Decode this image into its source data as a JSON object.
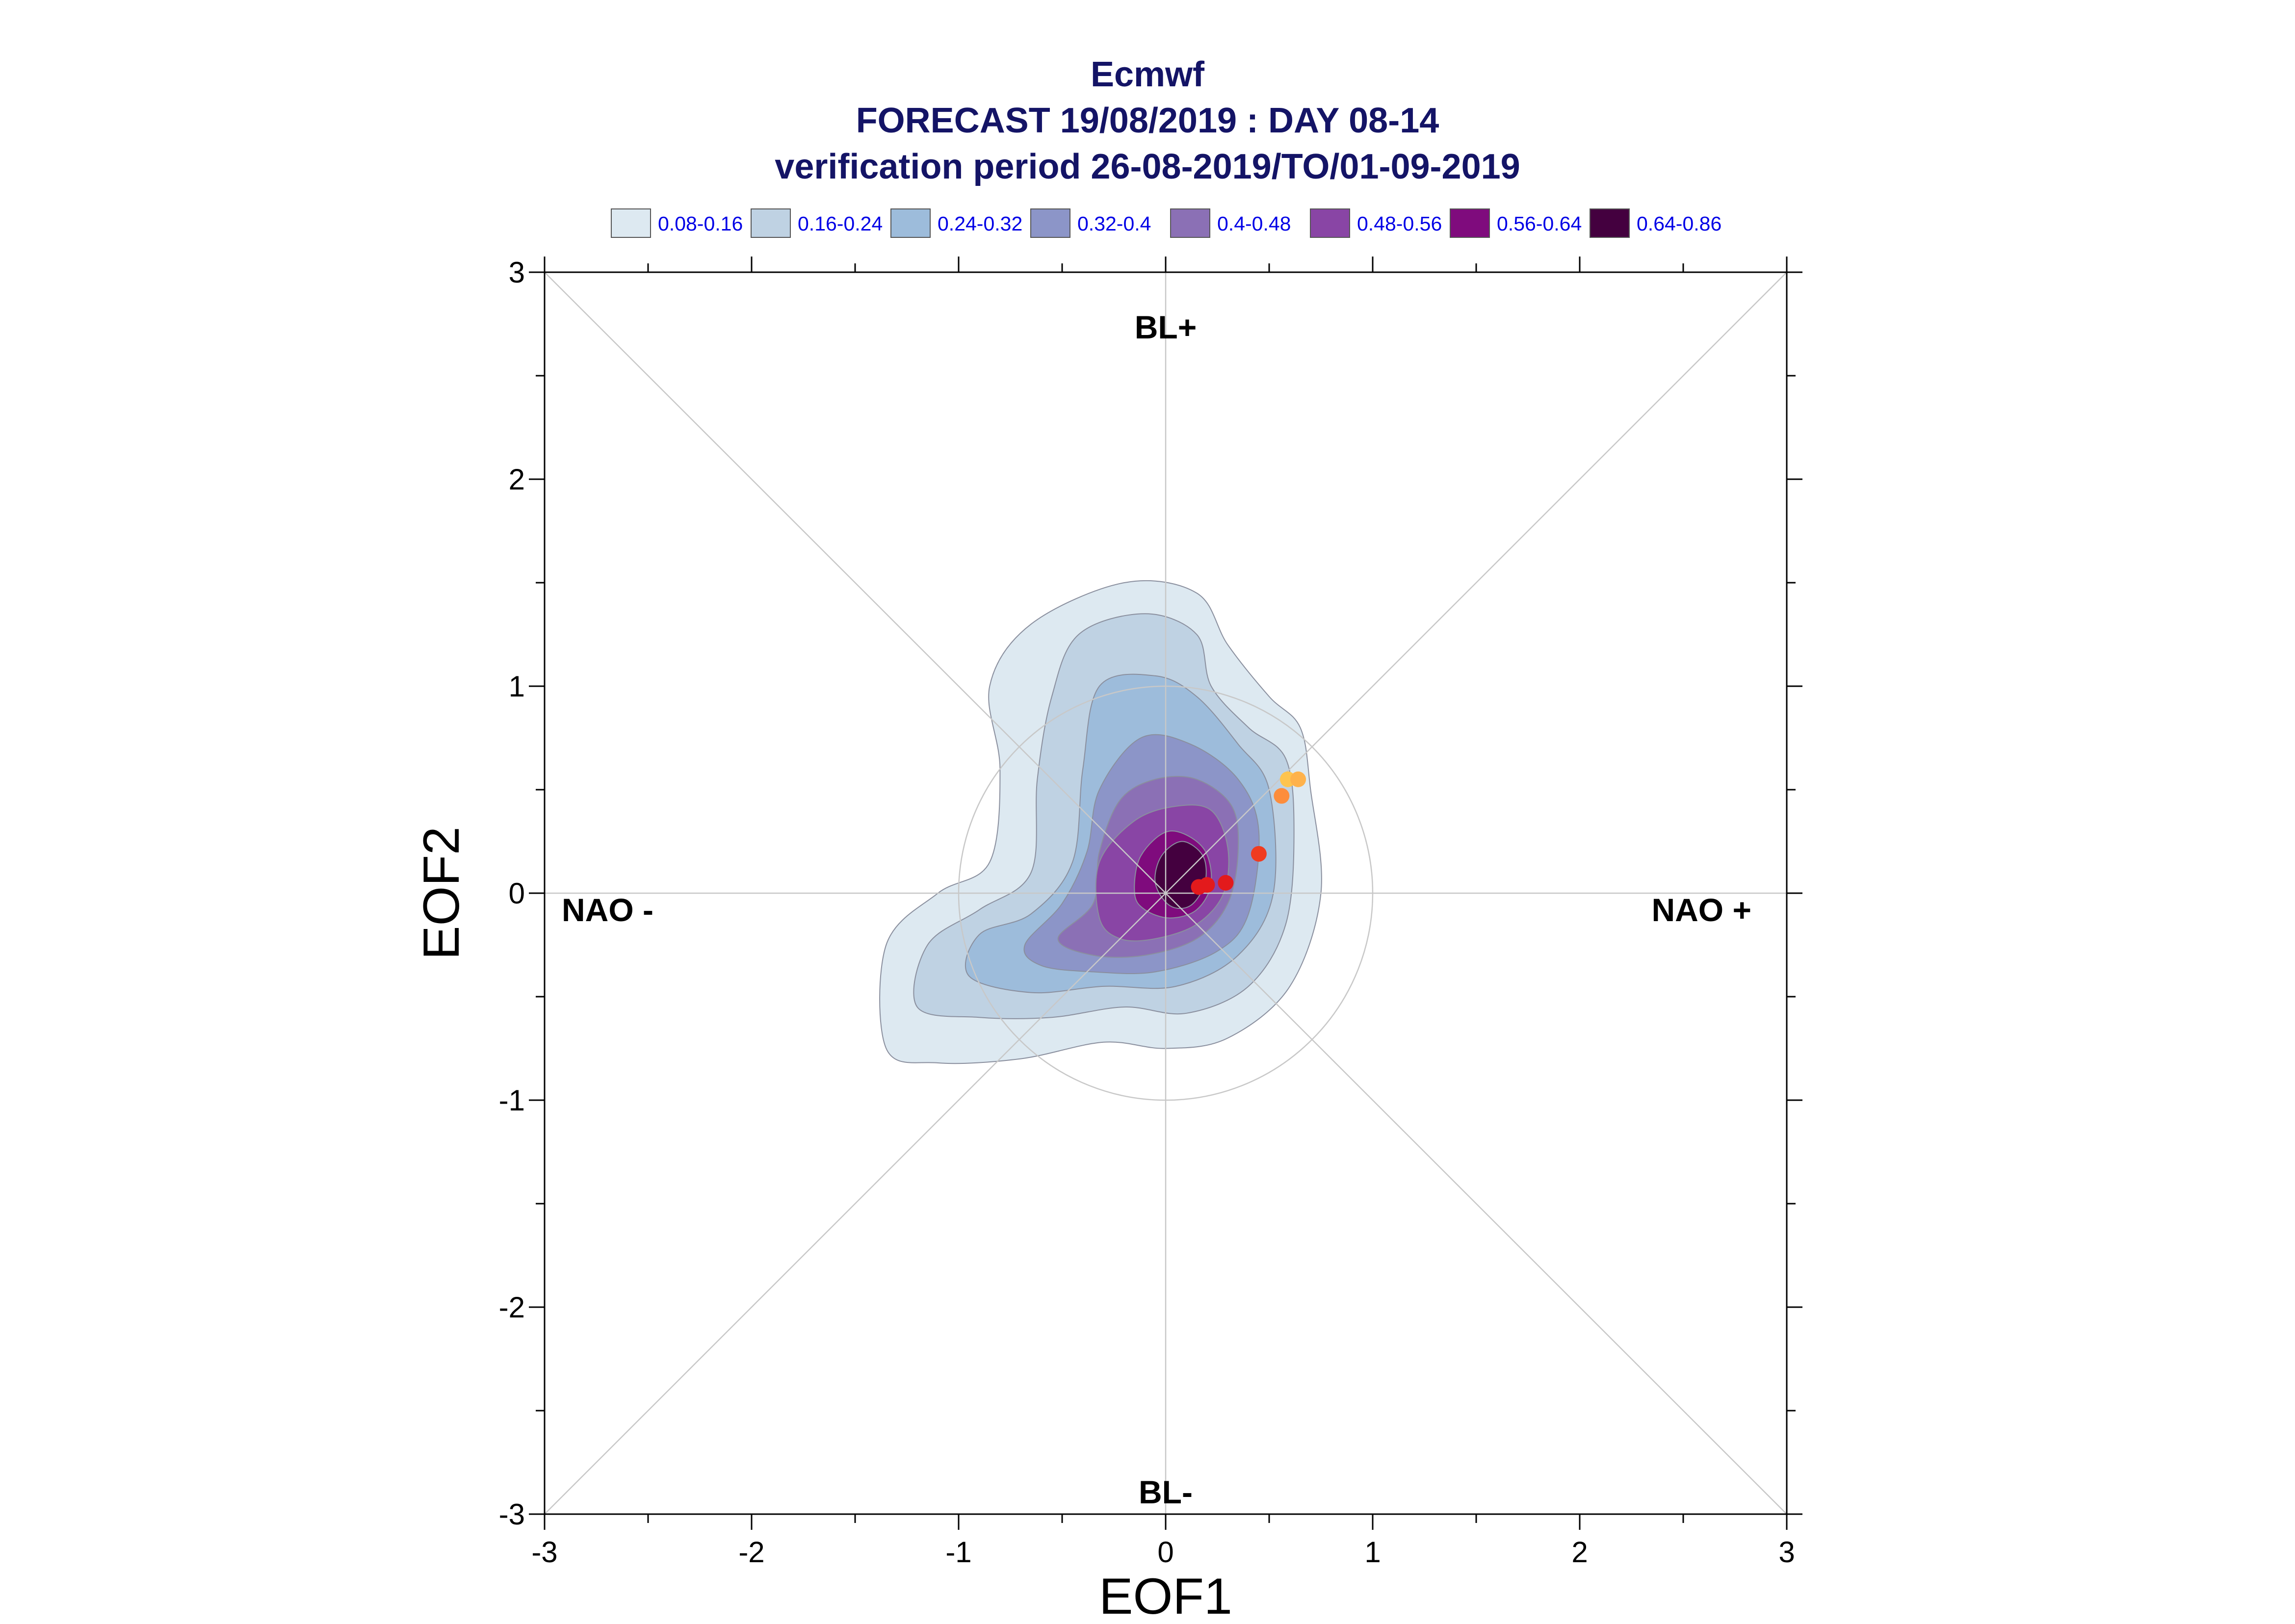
{
  "title": {
    "line1": "Ecmwf",
    "line2": "FORECAST 19/08/2019 : DAY 08-14",
    "line3": "verification period 26-08-2019/TO/01-09-2019"
  },
  "legend": [
    {
      "label": "0.08-0.16",
      "color": "#dde9f1"
    },
    {
      "label": "0.16-0.24",
      "color": "#bfd2e3"
    },
    {
      "label": "0.24-0.32",
      "color": "#9dbcdb"
    },
    {
      "label": "0.32-0.4",
      "color": "#8c95c8"
    },
    {
      "label": "0.4-0.48",
      "color": "#8b70b5"
    },
    {
      "label": "0.48-0.56",
      "color": "#8945a5"
    },
    {
      "label": "0.56-0.64",
      "color": "#7f0b7d"
    },
    {
      "label": "0.64-0.86",
      "color": "#44003f"
    }
  ],
  "regime_labels": {
    "top": "BL+",
    "bottom": "BL-",
    "left": "NAO -",
    "right": "NAO +"
  },
  "chart_data": {
    "type": "scatter",
    "xlabel": "EOF1",
    "ylabel": "EOF2",
    "xlim": [
      -3,
      3
    ],
    "ylim": [
      -3,
      3
    ],
    "xticks": [
      "-3",
      "-2",
      "-1",
      "0",
      "1",
      "2",
      "3"
    ],
    "yticks": [
      "-3",
      "-2",
      "-1",
      "0",
      "1",
      "2",
      "3"
    ],
    "grid": false,
    "reference_circle_radius": 1,
    "density_contours": [
      {
        "level": "0.08-0.16",
        "color": "#dde9f1",
        "points": [
          [
            -1.35,
            -0.75
          ],
          [
            -1.35,
            -0.25
          ],
          [
            -1.1,
            0.0
          ],
          [
            -0.85,
            0.15
          ],
          [
            -0.8,
            0.6
          ],
          [
            -0.85,
            1.0
          ],
          [
            -0.65,
            1.3
          ],
          [
            -0.2,
            1.5
          ],
          [
            0.15,
            1.45
          ],
          [
            0.3,
            1.2
          ],
          [
            0.5,
            0.95
          ],
          [
            0.65,
            0.8
          ],
          [
            0.7,
            0.5
          ],
          [
            0.75,
            0.0
          ],
          [
            0.6,
            -0.45
          ],
          [
            0.3,
            -0.7
          ],
          [
            0.0,
            -0.75
          ],
          [
            -0.3,
            -0.72
          ],
          [
            -0.7,
            -0.8
          ],
          [
            -1.1,
            -0.82
          ]
        ]
      },
      {
        "level": "0.16-0.24",
        "color": "#bfd2e3",
        "points": [
          [
            -1.2,
            -0.55
          ],
          [
            -1.15,
            -0.25
          ],
          [
            -0.9,
            -0.08
          ],
          [
            -0.65,
            0.1
          ],
          [
            -0.62,
            0.55
          ],
          [
            -0.55,
            0.95
          ],
          [
            -0.42,
            1.25
          ],
          [
            -0.1,
            1.35
          ],
          [
            0.15,
            1.25
          ],
          [
            0.22,
            1.0
          ],
          [
            0.4,
            0.8
          ],
          [
            0.58,
            0.65
          ],
          [
            0.62,
            0.3
          ],
          [
            0.58,
            -0.15
          ],
          [
            0.4,
            -0.45
          ],
          [
            0.1,
            -0.58
          ],
          [
            -0.2,
            -0.55
          ],
          [
            -0.55,
            -0.6
          ],
          [
            -0.9,
            -0.6
          ]
        ]
      },
      {
        "level": "0.24-0.32",
        "color": "#9dbcdb",
        "points": [
          [
            -0.95,
            -0.4
          ],
          [
            -0.9,
            -0.2
          ],
          [
            -0.65,
            -0.1
          ],
          [
            -0.45,
            0.15
          ],
          [
            -0.4,
            0.6
          ],
          [
            -0.32,
            1.0
          ],
          [
            -0.05,
            1.05
          ],
          [
            0.15,
            0.95
          ],
          [
            0.35,
            0.72
          ],
          [
            0.5,
            0.5
          ],
          [
            0.52,
            0.0
          ],
          [
            0.35,
            -0.3
          ],
          [
            0.05,
            -0.45
          ],
          [
            -0.3,
            -0.45
          ],
          [
            -0.65,
            -0.48
          ]
        ]
      },
      {
        "level": "0.32-0.4",
        "color": "#8c95c8",
        "points": [
          [
            -0.68,
            -0.25
          ],
          [
            -0.5,
            -0.05
          ],
          [
            -0.38,
            0.2
          ],
          [
            -0.32,
            0.5
          ],
          [
            -0.12,
            0.75
          ],
          [
            0.12,
            0.72
          ],
          [
            0.35,
            0.55
          ],
          [
            0.45,
            0.3
          ],
          [
            0.4,
            -0.1
          ],
          [
            0.25,
            -0.28
          ],
          [
            -0.05,
            -0.38
          ],
          [
            -0.35,
            -0.38
          ],
          [
            -0.6,
            -0.35
          ]
        ]
      },
      {
        "level": "0.4-0.48",
        "color": "#8b70b5",
        "points": [
          [
            -0.52,
            -0.22
          ],
          [
            -0.35,
            -0.05
          ],
          [
            -0.32,
            0.2
          ],
          [
            -0.22,
            0.45
          ],
          [
            -0.05,
            0.55
          ],
          [
            0.15,
            0.55
          ],
          [
            0.32,
            0.42
          ],
          [
            0.35,
            0.2
          ],
          [
            0.3,
            -0.05
          ],
          [
            0.15,
            -0.22
          ],
          [
            -0.1,
            -0.3
          ],
          [
            -0.35,
            -0.3
          ]
        ]
      },
      {
        "level": "0.48-0.56",
        "color": "#8945a5",
        "points": [
          [
            -0.32,
            -0.12
          ],
          [
            -0.32,
            0.15
          ],
          [
            -0.15,
            0.35
          ],
          [
            0.05,
            0.42
          ],
          [
            0.22,
            0.4
          ],
          [
            0.3,
            0.22
          ],
          [
            0.28,
            0.0
          ],
          [
            0.15,
            -0.15
          ],
          [
            -0.05,
            -0.22
          ],
          [
            -0.22,
            -0.22
          ]
        ]
      },
      {
        "level": "0.56-0.64",
        "color": "#7f0b7d",
        "points": [
          [
            -0.15,
            0.0
          ],
          [
            -0.12,
            0.18
          ],
          [
            0.02,
            0.3
          ],
          [
            0.18,
            0.22
          ],
          [
            0.22,
            0.05
          ],
          [
            0.15,
            -0.08
          ],
          [
            0.02,
            -0.12
          ],
          [
            -0.1,
            -0.08
          ]
        ]
      },
      {
        "level": "0.64-0.86",
        "color": "#44003f",
        "points": [
          [
            -0.05,
            0.05
          ],
          [
            -0.02,
            0.18
          ],
          [
            0.08,
            0.25
          ],
          [
            0.18,
            0.18
          ],
          [
            0.19,
            0.05
          ],
          [
            0.12,
            -0.06
          ],
          [
            0.02,
            -0.06
          ]
        ]
      }
    ],
    "points": [
      {
        "x": 0.16,
        "y": 0.03,
        "color": "#e31a1c"
      },
      {
        "x": 0.2,
        "y": 0.04,
        "color": "#e31a1c"
      },
      {
        "x": 0.29,
        "y": 0.05,
        "color": "#e31a1c"
      },
      {
        "x": 0.45,
        "y": 0.19,
        "color": "#f03b20"
      },
      {
        "x": 0.56,
        "y": 0.47,
        "color": "#fd8d3c"
      },
      {
        "x": 0.59,
        "y": 0.55,
        "color": "#fec44f"
      },
      {
        "x": 0.64,
        "y": 0.55,
        "color": "#feb24c"
      }
    ]
  }
}
